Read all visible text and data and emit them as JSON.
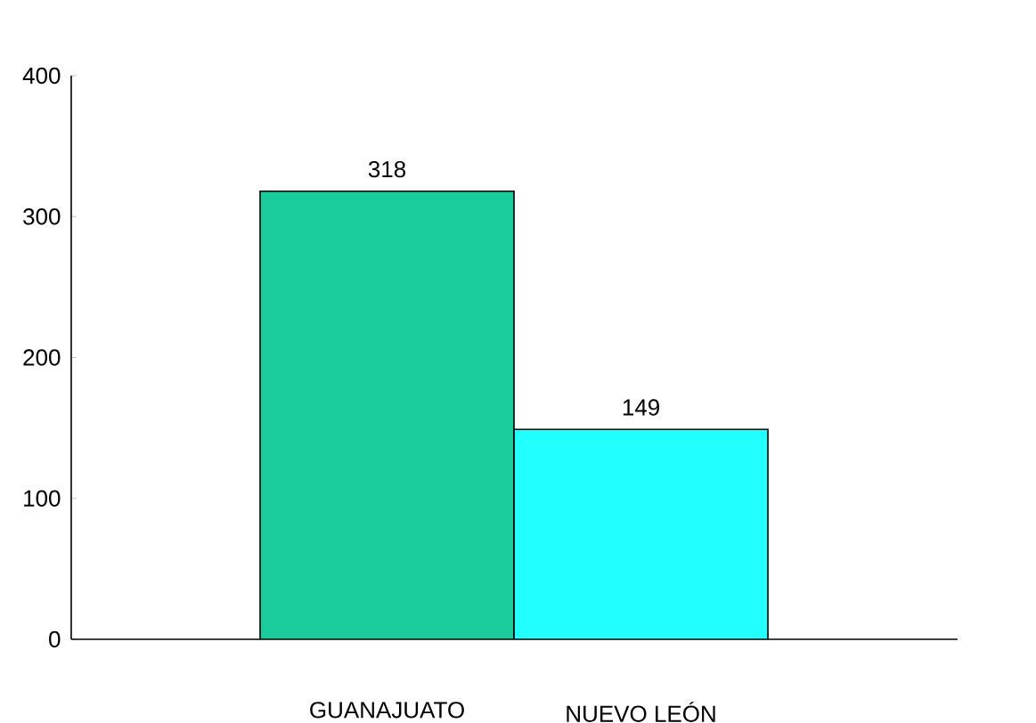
{
  "chart_data": {
    "type": "bar",
    "categories": [
      "GUANAJUATO",
      "NUEVO LEÓN"
    ],
    "values": [
      318,
      149
    ],
    "colors": [
      "#1acc99",
      "#22ffff"
    ],
    "ylim": [
      0,
      400
    ],
    "yticks": [
      0,
      100,
      200,
      300,
      400
    ],
    "data_labels": true,
    "grid": false,
    "legend": false
  }
}
